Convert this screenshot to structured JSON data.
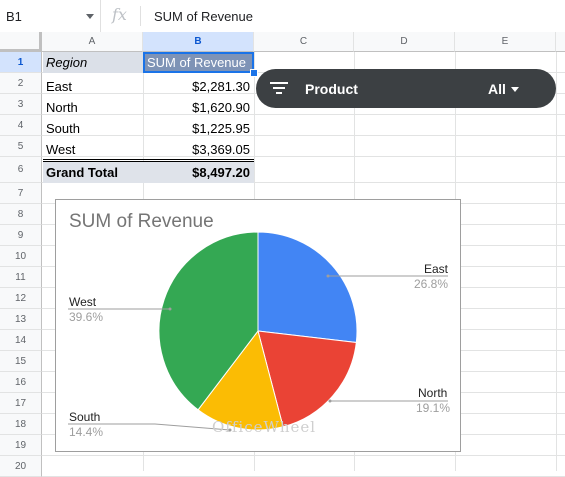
{
  "formula_bar": {
    "name_box": "B1",
    "fx": "fx",
    "formula": "SUM of Revenue"
  },
  "columns": [
    "A",
    "B",
    "C",
    "D",
    "E"
  ],
  "rows": [
    "1",
    "2",
    "3",
    "4",
    "5",
    "6",
    "7",
    "8",
    "9",
    "10",
    "11",
    "12",
    "13",
    "14",
    "15",
    "16",
    "17",
    "18",
    "19",
    "20"
  ],
  "pivot": {
    "header_a": "Region",
    "header_b": "SUM of Revenue",
    "rows": [
      {
        "region": "East",
        "value": "$2,281.30"
      },
      {
        "region": "North",
        "value": "$1,620.90"
      },
      {
        "region": "South",
        "value": "$1,225.95"
      },
      {
        "region": "West",
        "value": "$3,369.05"
      }
    ],
    "total_label": "Grand Total",
    "total_value": "$8,497.20"
  },
  "slicer": {
    "label": "Product",
    "value": "All",
    "icon": "filter-icon"
  },
  "chart_data": {
    "type": "pie",
    "title": "SUM of Revenue",
    "slices": [
      {
        "label": "East",
        "percent": "26.8%",
        "value": 2281.3,
        "color": "#4285f4"
      },
      {
        "label": "North",
        "percent": "19.1%",
        "value": 1620.9,
        "color": "#ea4335"
      },
      {
        "label": "South",
        "percent": "14.4%",
        "value": 1225.95,
        "color": "#fbbc04"
      },
      {
        "label": "West",
        "percent": "39.6%",
        "value": 3369.05,
        "color": "#34a853"
      }
    ],
    "legend": "labels with leader lines"
  },
  "watermark": "OfficeWheel"
}
